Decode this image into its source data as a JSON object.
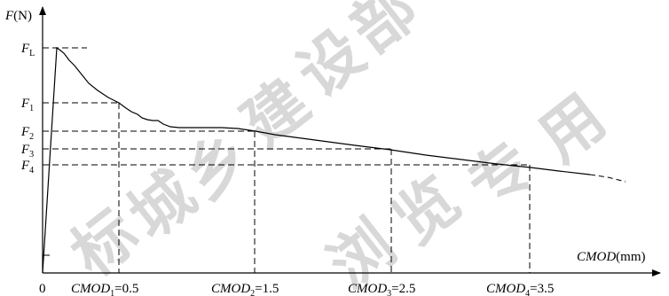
{
  "chart_data": {
    "type": "line",
    "y_axis": {
      "symbol": "F",
      "unit": "(N)"
    },
    "x_axis": {
      "symbol": "CMOD",
      "unit": "(mm)",
      "range": [
        0,
        4.5
      ]
    },
    "origin_label": "0",
    "x_markers": [
      {
        "symbol": "CMOD",
        "sub": "1",
        "eq": "=0.5",
        "value": 0.5
      },
      {
        "symbol": "CMOD",
        "sub": "2",
        "eq": "=1.5",
        "value": 1.5
      },
      {
        "symbol": "CMOD",
        "sub": "3",
        "eq": "=2.5",
        "value": 2.5
      },
      {
        "symbol": "CMOD",
        "sub": "4",
        "eq": "=3.5",
        "value": 3.5
      }
    ],
    "y_markers": [
      {
        "symbol": "F",
        "sub": "L",
        "key": "FL"
      },
      {
        "symbol": "F",
        "sub": "1",
        "key": "F1"
      },
      {
        "symbol": "F",
        "sub": "2",
        "key": "F2"
      },
      {
        "symbol": "F",
        "sub": "3",
        "key": "F3"
      },
      {
        "symbol": "F",
        "sub": "4",
        "key": "F4"
      }
    ],
    "grid": false,
    "legend": "none"
  },
  "watermark": [
    "标",
    "城",
    "乡",
    "建",
    "设",
    "部",
    "浏",
    "览",
    "专",
    "用"
  ]
}
